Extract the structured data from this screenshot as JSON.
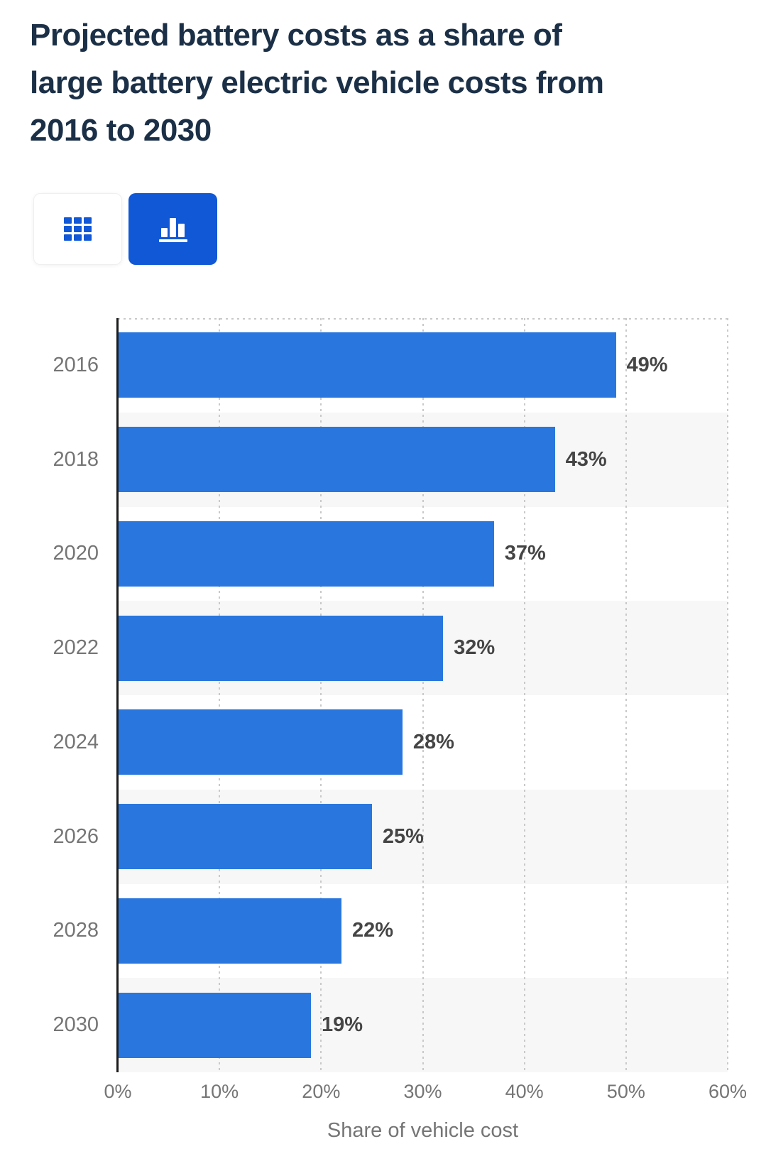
{
  "title": "Projected battery costs as a share of large battery electric vehicle costs from 2016 to 2030",
  "title_lines": [
    "Projected battery costs as a share of",
    "large battery electric vehicle costs from",
    "2016 to 2030"
  ],
  "view_toggle": {
    "table_button": "Table view",
    "chart_button": "Chart view",
    "selected": "chart"
  },
  "chart_data": {
    "type": "bar",
    "orientation": "horizontal",
    "categories": [
      "2016",
      "2018",
      "2020",
      "2022",
      "2024",
      "2026",
      "2028",
      "2030"
    ],
    "values": [
      49,
      43,
      37,
      32,
      28,
      25,
      22,
      19
    ],
    "value_labels": [
      "49%",
      "43%",
      "37%",
      "32%",
      "28%",
      "25%",
      "22%",
      "19%"
    ],
    "xlabel": "Share of vehicle cost",
    "ylabel": "",
    "x_ticks": [
      "0%",
      "10%",
      "20%",
      "30%",
      "40%",
      "50%",
      "60%"
    ],
    "xlim": [
      0,
      60
    ],
    "grid": true,
    "legend": "none",
    "bar_color": "#2977de",
    "alt_row_color": "#f7f7f7"
  },
  "colors": {
    "title": "#1b3047",
    "accent_button": "#1158d6",
    "bar": "#2977de",
    "axis_text": "#757575",
    "value_text": "#454545",
    "gridline": "#c9c9c9"
  }
}
